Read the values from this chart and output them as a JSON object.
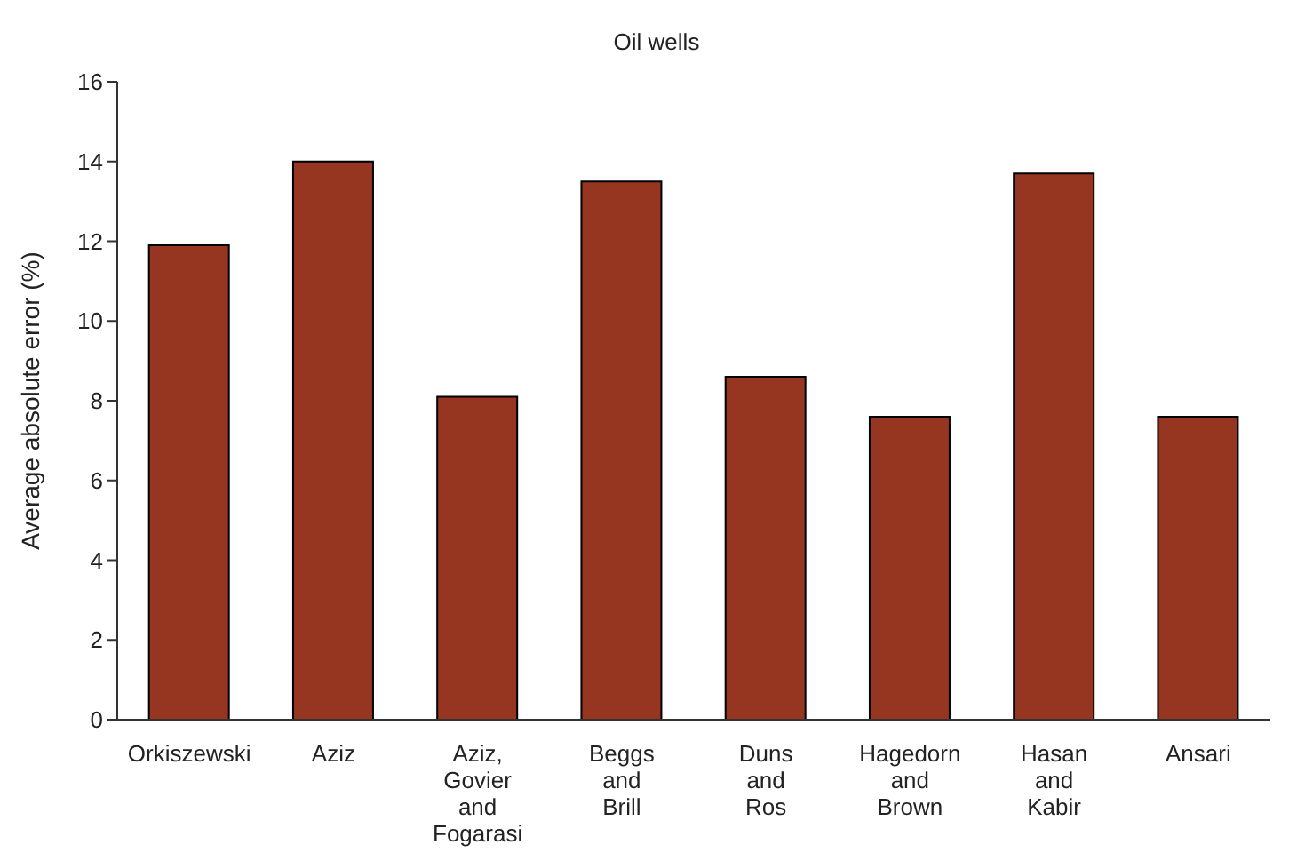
{
  "chart_data": {
    "type": "bar",
    "title": "Oil wells",
    "ylabel": "Average absolute error (%)",
    "categories": [
      "Orkiszewski",
      "Aziz",
      "Aziz, Govier and Fogarasi",
      "Beggs and Brill",
      "Duns and Ros",
      "Hagedorn and Brown",
      "Hasan and Kabir",
      "Ansari"
    ],
    "values": [
      11.9,
      14.0,
      8.1,
      13.5,
      8.6,
      7.6,
      13.7,
      7.6
    ],
    "color": "#963520",
    "ylim": [
      0,
      16
    ],
    "yticks": [
      0,
      2,
      4,
      6,
      8,
      10,
      12,
      14,
      16
    ],
    "grid": false,
    "legend": false
  }
}
